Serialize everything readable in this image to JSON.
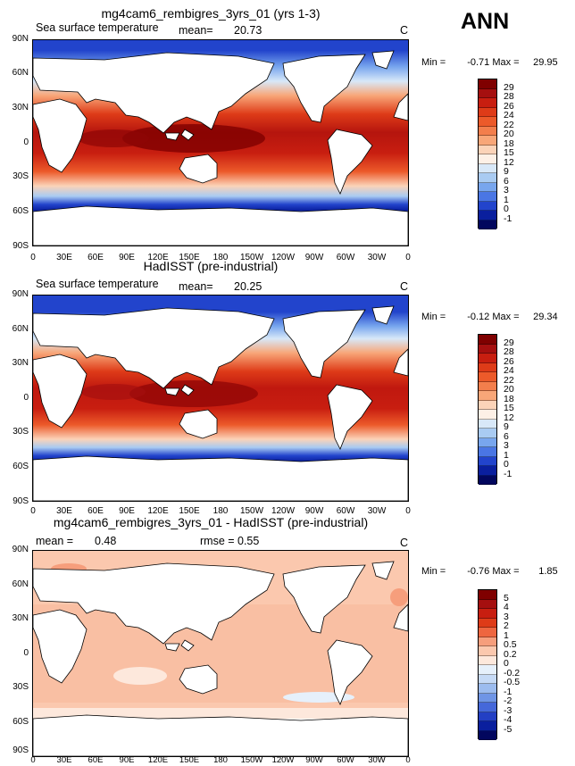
{
  "season": "ANN",
  "panels": [
    {
      "title": "mg4cam6_rembigres_3yrs_01 (yrs 1-3)",
      "left_label": "Sea surface temperature",
      "mean_label": "mean=",
      "mean_value": "20.73",
      "rmse_label": "",
      "rmse_value": "",
      "units": "C",
      "min_label": "Min =",
      "min_value": "-0.71",
      "max_label": "Max =",
      "max_value": "29.95",
      "colorbar": {
        "labels": [
          "29",
          "28",
          "26",
          "24",
          "22",
          "20",
          "18",
          "15",
          "12",
          "9",
          "6",
          "3",
          "1",
          "0",
          "-1"
        ],
        "colors": [
          "#7f0000",
          "#a50f0f",
          "#c81e10",
          "#de3b18",
          "#ec5a2a",
          "#f37e4c",
          "#f8a678",
          "#fbd3b8",
          "#fdf0e6",
          "#d8e8f8",
          "#a9cbf2",
          "#78a6ee",
          "#4a76e4",
          "#2244cc",
          "#0a1f9e",
          "#02075e"
        ]
      }
    },
    {
      "title": "HadISST (pre-industrial)",
      "left_label": "Sea surface temperature",
      "mean_label": "mean=",
      "mean_value": "20.25",
      "rmse_label": "",
      "rmse_value": "",
      "units": "C",
      "min_label": "Min =",
      "min_value": "-0.12",
      "max_label": "Max =",
      "max_value": "29.34",
      "colorbar": {
        "labels": [
          "29",
          "28",
          "26",
          "24",
          "22",
          "20",
          "18",
          "15",
          "12",
          "9",
          "6",
          "3",
          "1",
          "0",
          "-1"
        ],
        "colors": [
          "#7f0000",
          "#a50f0f",
          "#c81e10",
          "#de3b18",
          "#ec5a2a",
          "#f37e4c",
          "#f8a678",
          "#fbd3b8",
          "#fdf0e6",
          "#d8e8f8",
          "#a9cbf2",
          "#78a6ee",
          "#4a76e4",
          "#2244cc",
          "#0a1f9e",
          "#02075e"
        ]
      }
    },
    {
      "title": "mg4cam6_rembigres_3yrs_01 - HadISST (pre-industrial)",
      "left_label": "",
      "mean_label": "mean =",
      "mean_value": "0.48",
      "rmse_label": "rmse =",
      "rmse_value": "0.55",
      "units": "C",
      "min_label": "Min =",
      "min_value": "-0.76",
      "max_label": "Max =",
      "max_value": "1.85",
      "colorbar": {
        "labels": [
          "5",
          "4",
          "3",
          "2",
          "1",
          "0.5",
          "0.2",
          "0",
          "-0.2",
          "-0.5",
          "-1",
          "-2",
          "-3",
          "-4",
          "-5"
        ],
        "colors": [
          "#7f0000",
          "#a50f0f",
          "#c81e10",
          "#de3b18",
          "#ee6640",
          "#f69e7c",
          "#fbc8ae",
          "#fde8dc",
          "#e6f0fb",
          "#c6daf6",
          "#9cbcef",
          "#6f95e6",
          "#4568da",
          "#233fc4",
          "#0a1f9e",
          "#02075e"
        ]
      }
    }
  ],
  "axes": {
    "lat_labels": [
      "90N",
      "60N",
      "30N",
      "0",
      "30S",
      "60S",
      "90S"
    ],
    "lon_labels": [
      "0",
      "30E",
      "60E",
      "90E",
      "120E",
      "150E",
      "180",
      "150W",
      "120W",
      "90W",
      "60W",
      "30W",
      "0"
    ]
  }
}
